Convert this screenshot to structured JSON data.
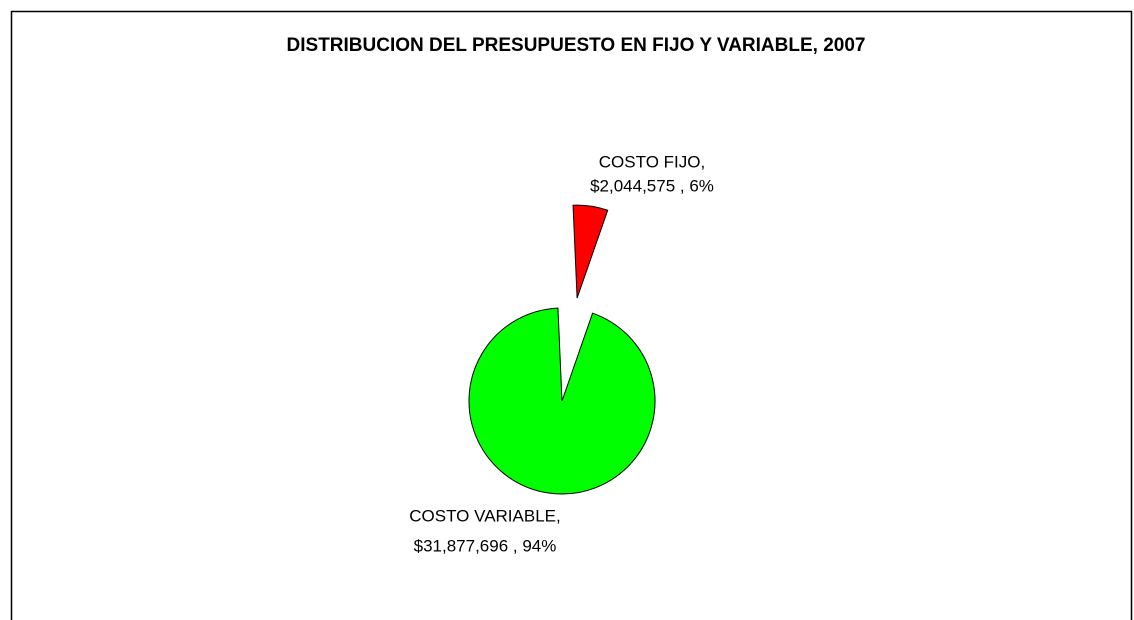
{
  "chart_data": {
    "type": "pie",
    "title": "DISTRIBUCION DEL PRESUPUESTO EN FIJO Y VARIABLE, 2007",
    "values": [
      2044575,
      31877696
    ],
    "value_labels": [
      "$2,044,575",
      "$31,877,696"
    ],
    "data_labels": [
      [
        "COSTO FIJO,",
        "$2,044,575 , 6%"
      ],
      [
        "COSTO VARIABLE,",
        "$31,877,696 , 94%"
      ]
    ],
    "colors": [
      "#ff0000",
      "#00ff00"
    ],
    "exploded": [
      true,
      false
    ]
  }
}
